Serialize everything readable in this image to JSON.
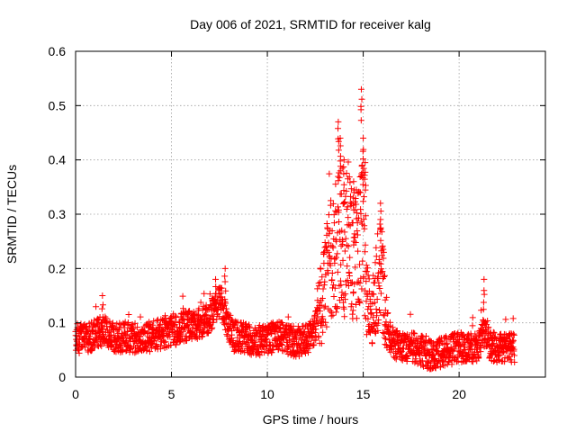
{
  "chart_data": {
    "type": "scatter",
    "title": "Day 006 of 2021, SRMTID for receiver kalg",
    "xlabel": "GPS time / hours",
    "ylabel": "SRMTID / TECUs",
    "xlim": [
      0,
      24.5
    ],
    "ylim": [
      0,
      0.6
    ],
    "xticks": [
      0,
      5,
      10,
      15,
      20
    ],
    "xtick_labels": [
      "0",
      "5",
      "10",
      "15",
      "20"
    ],
    "yticks": [
      0,
      0.1,
      0.2,
      0.3,
      0.4,
      0.5,
      0.6
    ],
    "ytick_labels": [
      "0",
      "0.1",
      "0.2",
      "0.3",
      "0.4",
      "0.5",
      "0.6"
    ],
    "grid": true,
    "marker": "+",
    "color": "#ff0000",
    "series": [
      {
        "name": "SRMTID",
        "sample_interval_hours": 0.01,
        "x_start": 0,
        "x_end": 22.9,
        "trend": [
          [
            0,
            0.072
          ],
          [
            0.5,
            0.07
          ],
          [
            1,
            0.08
          ],
          [
            1.5,
            0.085
          ],
          [
            2,
            0.07
          ],
          [
            2.5,
            0.075
          ],
          [
            3,
            0.072
          ],
          [
            3.5,
            0.07
          ],
          [
            4,
            0.075
          ],
          [
            4.5,
            0.08
          ],
          [
            5,
            0.085
          ],
          [
            5.5,
            0.09
          ],
          [
            6,
            0.095
          ],
          [
            6.5,
            0.1
          ],
          [
            7,
            0.11
          ],
          [
            7.3,
            0.13
          ],
          [
            7.6,
            0.14
          ],
          [
            7.9,
            0.1
          ],
          [
            8.2,
            0.075
          ],
          [
            8.5,
            0.075
          ],
          [
            9,
            0.07
          ],
          [
            9.5,
            0.065
          ],
          [
            10,
            0.07
          ],
          [
            10.5,
            0.075
          ],
          [
            11,
            0.07
          ],
          [
            11.5,
            0.065
          ],
          [
            12,
            0.07
          ],
          [
            12.4,
            0.08
          ],
          [
            12.7,
            0.12
          ],
          [
            13,
            0.16
          ],
          [
            13.3,
            0.21
          ],
          [
            13.6,
            0.24
          ],
          [
            13.8,
            0.28
          ],
          [
            14,
            0.22
          ],
          [
            14.2,
            0.26
          ],
          [
            14.5,
            0.22
          ],
          [
            14.8,
            0.25
          ],
          [
            15,
            0.3
          ],
          [
            15.2,
            0.14
          ],
          [
            15.4,
            0.1
          ],
          [
            15.6,
            0.15
          ],
          [
            15.9,
            0.2
          ],
          [
            16.1,
            0.14
          ],
          [
            16.3,
            0.08
          ],
          [
            16.6,
            0.06
          ],
          [
            17,
            0.058
          ],
          [
            17.5,
            0.055
          ],
          [
            18,
            0.05
          ],
          [
            18.5,
            0.04
          ],
          [
            19,
            0.045
          ],
          [
            19.5,
            0.05
          ],
          [
            20,
            0.055
          ],
          [
            20.5,
            0.055
          ],
          [
            21,
            0.055
          ],
          [
            21.3,
            0.085
          ],
          [
            21.6,
            0.06
          ],
          [
            22,
            0.05
          ],
          [
            22.5,
            0.055
          ],
          [
            22.9,
            0.055
          ]
        ],
        "peaks": [
          {
            "x": 1.4,
            "y": 0.15
          },
          {
            "x": 7.8,
            "y": 0.2
          },
          {
            "x": 7.3,
            "y": 0.18
          },
          {
            "x": 13.7,
            "y": 0.47
          },
          {
            "x": 13.8,
            "y": 0.44
          },
          {
            "x": 14.0,
            "y": 0.4
          },
          {
            "x": 14.5,
            "y": 0.36
          },
          {
            "x": 14.9,
            "y": 0.53
          },
          {
            "x": 15.0,
            "y": 0.44
          },
          {
            "x": 15.1,
            "y": 0.395
          },
          {
            "x": 15.9,
            "y": 0.32
          },
          {
            "x": 21.3,
            "y": 0.18
          }
        ],
        "random_seed": 20210106
      }
    ]
  }
}
